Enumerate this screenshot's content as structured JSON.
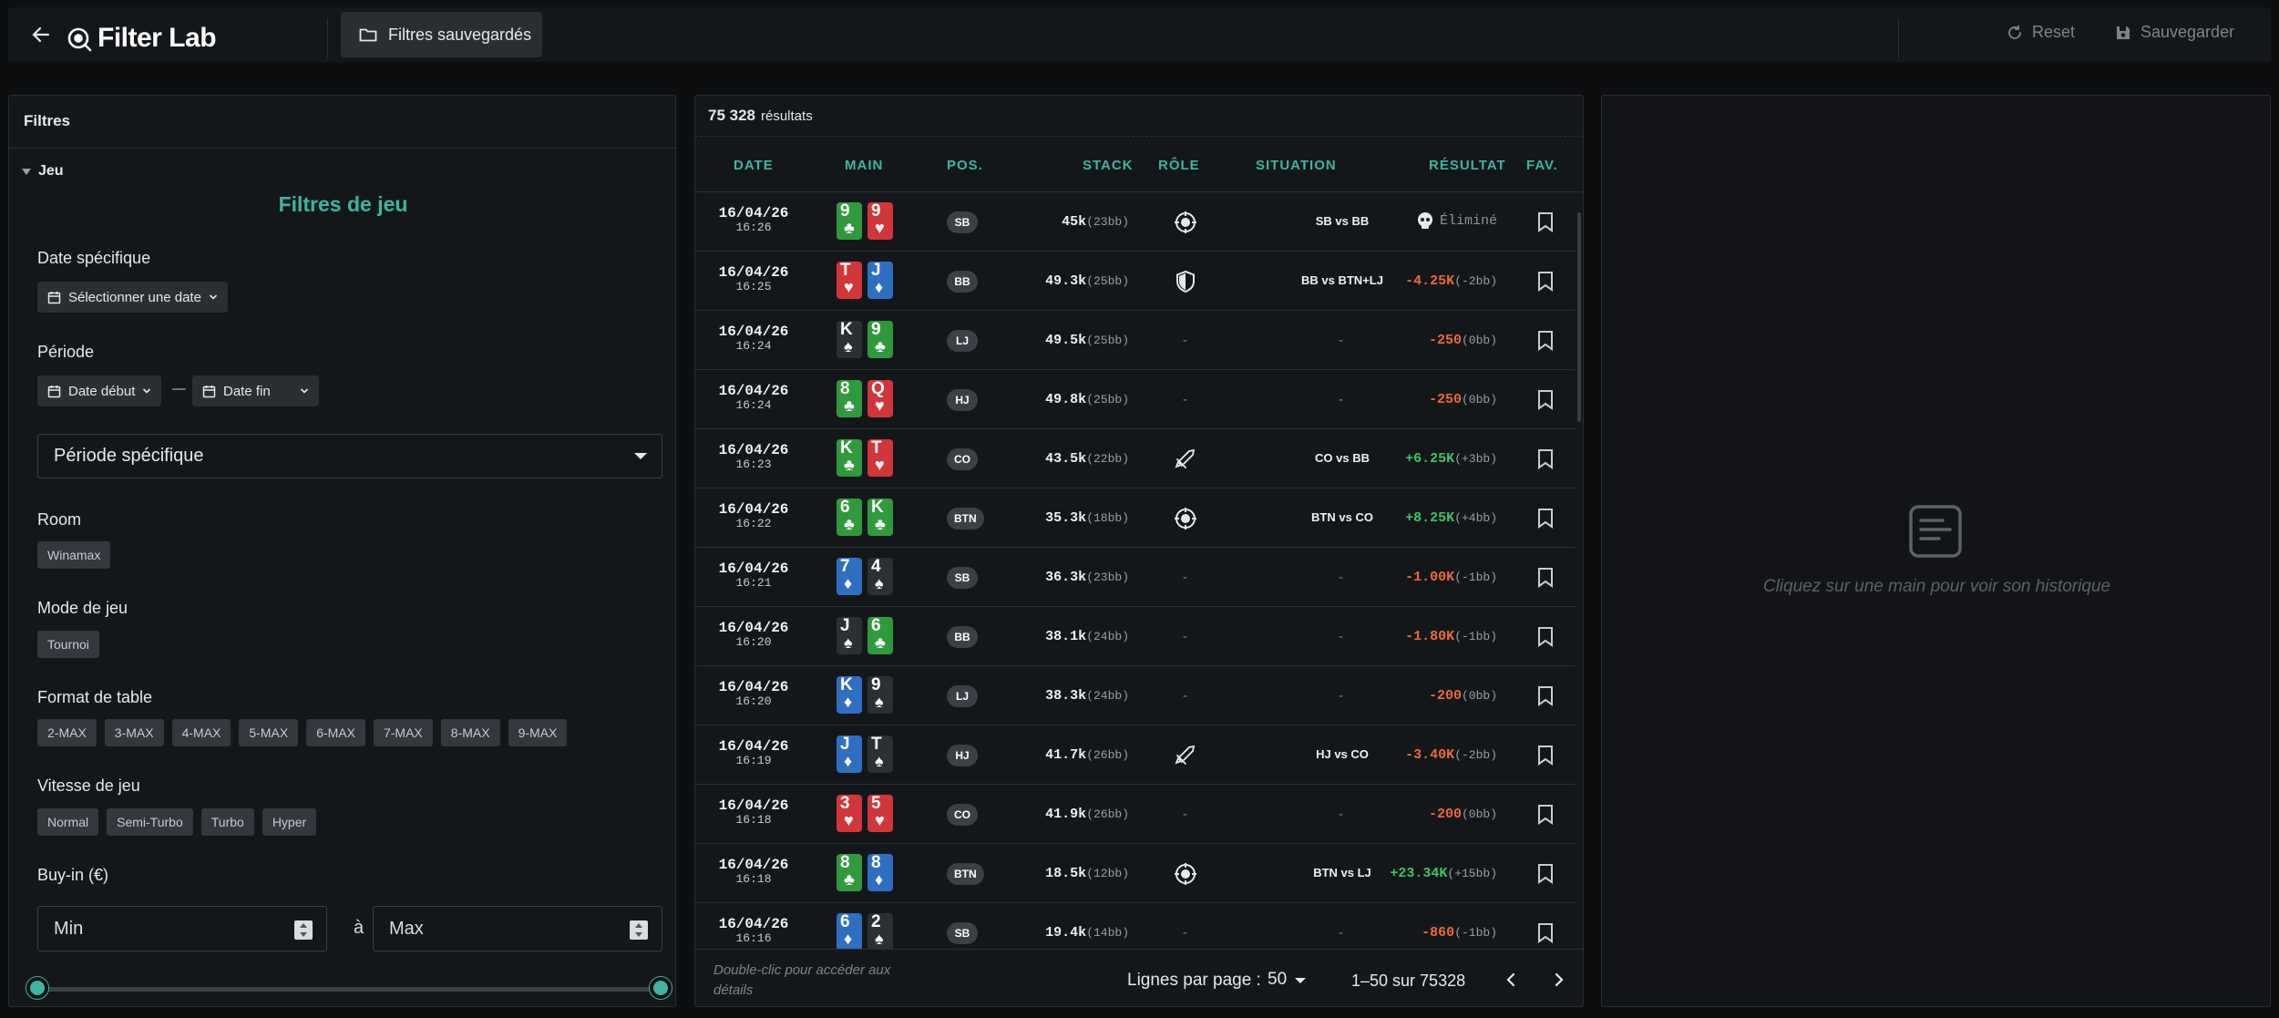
{
  "app": {
    "title": "Filter Lab",
    "saved_filters_label": "Filtres sauvegardés",
    "reset_label": "Reset",
    "save_label": "Sauvegarder"
  },
  "filters": {
    "panel_title": "Filtres",
    "section_label": "Jeu",
    "section_title": "Filtres de jeu",
    "specific_date_label": "Date spécifique",
    "specific_date_button": "Sélectionner une date",
    "period_label": "Période",
    "date_start": "Date début",
    "date_end": "Date fin",
    "period_dash": "—",
    "period_select": "Période spécifique",
    "room_label": "Room",
    "room_chips": [
      "Winamax"
    ],
    "mode_label": "Mode de jeu",
    "mode_chips": [
      "Tournoi"
    ],
    "table_format_label": "Format de table",
    "table_format_chips": [
      "2-MAX",
      "3-MAX",
      "4-MAX",
      "5-MAX",
      "6-MAX",
      "7-MAX",
      "8-MAX",
      "9-MAX"
    ],
    "speed_label": "Vitesse de jeu",
    "speed_chips": [
      "Normal",
      "Semi-Turbo",
      "Turbo",
      "Hyper"
    ],
    "buyin_label": "Buy-in (€)",
    "buyin_min_placeholder": "Min",
    "buyin_max_placeholder": "Max",
    "buyin_between": "à"
  },
  "results": {
    "count_main": "75 328",
    "count_label": "résultats",
    "columns": {
      "date": "DATE",
      "hand": "MAIN",
      "pos": "POS.",
      "stack": "STACK",
      "role": "RÔLE",
      "situation": "SITUATION",
      "result": "RÉSULTAT",
      "fav": "FAV."
    },
    "rows": [
      {
        "date": "16/04/26",
        "time": "16:26",
        "cards": [
          {
            "r": "9",
            "s": "c"
          },
          {
            "r": "9",
            "s": "h"
          }
        ],
        "pos": "SB",
        "stack": "45k",
        "bb": "(23bb)",
        "role": "target",
        "situation": "SB vs BB",
        "result": "Éliminé",
        "result_bb": "",
        "result_type": "elim"
      },
      {
        "date": "16/04/26",
        "time": "16:25",
        "cards": [
          {
            "r": "T",
            "s": "h"
          },
          {
            "r": "J",
            "s": "d"
          }
        ],
        "pos": "BB",
        "stack": "49.3k",
        "bb": "(25bb)",
        "role": "shield",
        "situation": "BB vs BTN+LJ",
        "result": "-4.25K",
        "result_bb": "(-2bb)",
        "result_type": "neg"
      },
      {
        "date": "16/04/26",
        "time": "16:24",
        "cards": [
          {
            "r": "K",
            "s": "s"
          },
          {
            "r": "9",
            "s": "c"
          }
        ],
        "pos": "LJ",
        "stack": "49.5k",
        "bb": "(25bb)",
        "role": "",
        "situation": "",
        "result": "-250",
        "result_bb": "(0bb)",
        "result_type": "neg"
      },
      {
        "date": "16/04/26",
        "time": "16:24",
        "cards": [
          {
            "r": "8",
            "s": "c"
          },
          {
            "r": "Q",
            "s": "h"
          }
        ],
        "pos": "HJ",
        "stack": "49.8k",
        "bb": "(25bb)",
        "role": "",
        "situation": "",
        "result": "-250",
        "result_bb": "(0bb)",
        "result_type": "neg"
      },
      {
        "date": "16/04/26",
        "time": "16:23",
        "cards": [
          {
            "r": "K",
            "s": "c"
          },
          {
            "r": "T",
            "s": "h"
          }
        ],
        "pos": "CO",
        "stack": "43.5k",
        "bb": "(22bb)",
        "role": "sword",
        "situation": "CO vs BB",
        "result": "+6.25K",
        "result_bb": "(+3bb)",
        "result_type": "pos"
      },
      {
        "date": "16/04/26",
        "time": "16:22",
        "cards": [
          {
            "r": "6",
            "s": "c"
          },
          {
            "r": "K",
            "s": "c"
          }
        ],
        "pos": "BTN",
        "stack": "35.3k",
        "bb": "(18bb)",
        "role": "target",
        "situation": "BTN vs CO",
        "result": "+8.25K",
        "result_bb": "(+4bb)",
        "result_type": "pos"
      },
      {
        "date": "16/04/26",
        "time": "16:21",
        "cards": [
          {
            "r": "7",
            "s": "d"
          },
          {
            "r": "4",
            "s": "s"
          }
        ],
        "pos": "SB",
        "stack": "36.3k",
        "bb": "(23bb)",
        "role": "",
        "situation": "",
        "result": "-1.00K",
        "result_bb": "(-1bb)",
        "result_type": "neg"
      },
      {
        "date": "16/04/26",
        "time": "16:20",
        "cards": [
          {
            "r": "J",
            "s": "s"
          },
          {
            "r": "6",
            "s": "c"
          }
        ],
        "pos": "BB",
        "stack": "38.1k",
        "bb": "(24bb)",
        "role": "",
        "situation": "",
        "result": "-1.80K",
        "result_bb": "(-1bb)",
        "result_type": "neg"
      },
      {
        "date": "16/04/26",
        "time": "16:20",
        "cards": [
          {
            "r": "K",
            "s": "d"
          },
          {
            "r": "9",
            "s": "s"
          }
        ],
        "pos": "LJ",
        "stack": "38.3k",
        "bb": "(24bb)",
        "role": "",
        "situation": "",
        "result": "-200",
        "result_bb": "(0bb)",
        "result_type": "neg"
      },
      {
        "date": "16/04/26",
        "time": "16:19",
        "cards": [
          {
            "r": "J",
            "s": "d"
          },
          {
            "r": "T",
            "s": "s"
          }
        ],
        "pos": "HJ",
        "stack": "41.7k",
        "bb": "(26bb)",
        "role": "sword",
        "situation": "HJ vs CO",
        "result": "-3.40K",
        "result_bb": "(-2bb)",
        "result_type": "neg"
      },
      {
        "date": "16/04/26",
        "time": "16:18",
        "cards": [
          {
            "r": "3",
            "s": "h"
          },
          {
            "r": "5",
            "s": "h"
          }
        ],
        "pos": "CO",
        "stack": "41.9k",
        "bb": "(26bb)",
        "role": "",
        "situation": "",
        "result": "-200",
        "result_bb": "(0bb)",
        "result_type": "neg"
      },
      {
        "date": "16/04/26",
        "time": "16:18",
        "cards": [
          {
            "r": "8",
            "s": "c"
          },
          {
            "r": "8",
            "s": "d"
          }
        ],
        "pos": "BTN",
        "stack": "18.5k",
        "bb": "(12bb)",
        "role": "target",
        "situation": "BTN vs LJ",
        "result": "+23.34K",
        "result_bb": "(+15bb)",
        "result_type": "pos"
      },
      {
        "date": "16/04/26",
        "time": "16:16",
        "cards": [
          {
            "r": "6",
            "s": "d"
          },
          {
            "r": "2",
            "s": "s"
          }
        ],
        "pos": "SB",
        "stack": "19.4k",
        "bb": "(14bb)",
        "role": "",
        "situation": "",
        "result": "-860",
        "result_bb": "(-1bb)",
        "result_type": "neg"
      }
    ],
    "empty_dash": "-",
    "footer_hint": "Double-clic pour accéder aux détails",
    "rows_per_page_label": "Lignes par page :",
    "rows_per_page_value": "50",
    "range_text": "1–50 sur 75328"
  },
  "detail": {
    "empty_text": "Cliquez sur une main pour voir son historique"
  },
  "colors": {
    "accent": "#3fb5a0",
    "positive": "#3ec463",
    "negative": "#f0673e",
    "heart": "#d2363a",
    "diamond": "#2f6fc2",
    "club": "#2f9a3b",
    "spade": "#2c2f33"
  }
}
